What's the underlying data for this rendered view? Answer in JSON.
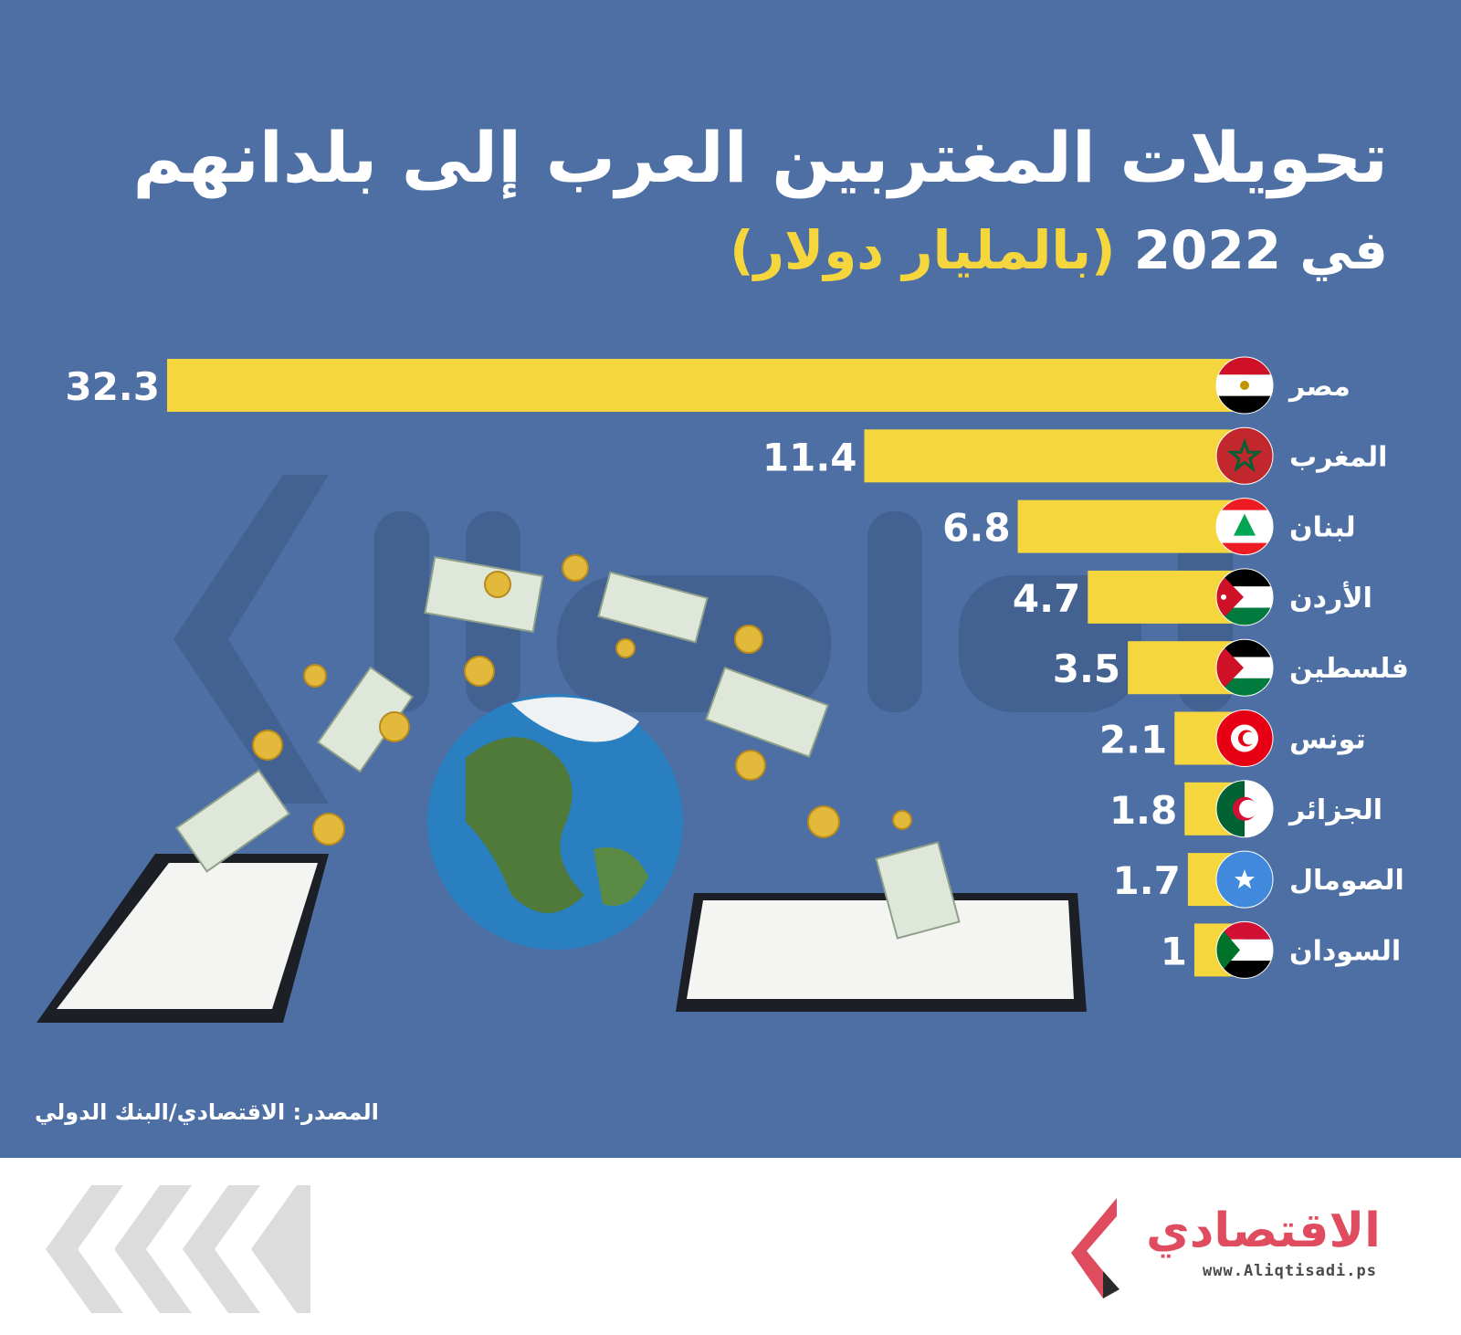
{
  "header": {
    "title": "تحويلات المغتربين العرب إلى بلدانهم",
    "subtitle_prefix": "في 2022",
    "subtitle_unit": "(بالمليار دولار)"
  },
  "chart_data": {
    "type": "bar",
    "orientation": "horizontal",
    "categories": [
      "مصر",
      "المغرب",
      "لبنان",
      "الأردن",
      "فلسطين",
      "تونس",
      "الجزائر",
      "الصومال",
      "السودان"
    ],
    "values": [
      32.3,
      11.4,
      6.8,
      4.7,
      3.5,
      2.1,
      1.8,
      1.7,
      1
    ],
    "value_labels": [
      "32.3",
      "11.4",
      "6.8",
      "4.7",
      "3.5",
      "2.1",
      "1.8",
      "1.7",
      "1"
    ],
    "title": "تحويلات المغتربين العرب إلى بلدانهم",
    "subtitle": "في 2022 (بالمليار دولار)",
    "bar_color": "#f5d63d",
    "grid": false,
    "legend": "none"
  },
  "flags": [
    "egypt-flag-icon",
    "morocco-flag-icon",
    "lebanon-flag-icon",
    "jordan-flag-icon",
    "palestine-flag-icon",
    "tunisia-flag-icon",
    "algeria-flag-icon",
    "somalia-flag-icon",
    "sudan-flag-icon"
  ],
  "colors": {
    "background": "#4d6fa3",
    "bar": "#f5d63d",
    "text": "#ffffff",
    "brand": "#e04c5f"
  },
  "source": "المصدر: الاقتصادي/البنك الدولي",
  "brand": {
    "name": "الاقتصادي",
    "url": "www.Aliqtisadi.ps"
  }
}
